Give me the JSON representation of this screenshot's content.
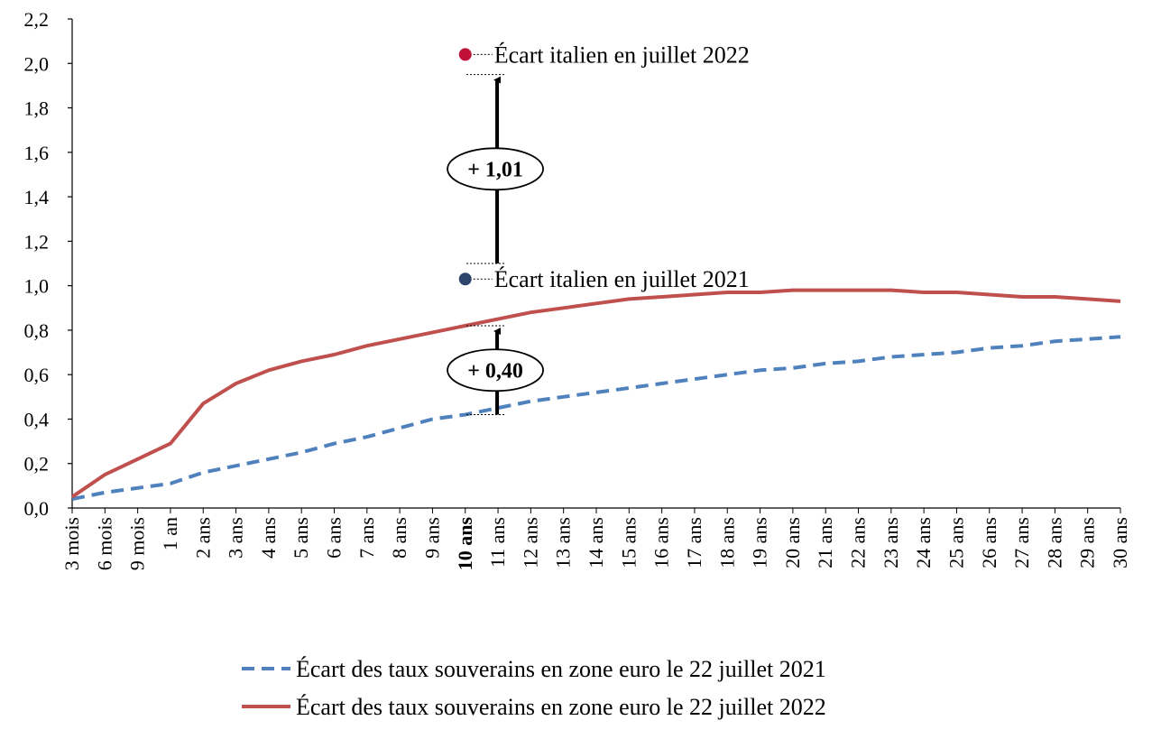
{
  "chart_data": {
    "type": "line",
    "categories": [
      "3 mois",
      "6 mois",
      "9 mois",
      "1 an",
      "2 ans",
      "3 ans",
      "4 ans",
      "5 ans",
      "6 ans",
      "7 ans",
      "8 ans",
      "9 ans",
      "10 ans",
      "11 ans",
      "12 ans",
      "13 ans",
      "14 ans",
      "15 ans",
      "16 ans",
      "17 ans",
      "18 ans",
      "19 ans",
      "20 ans",
      "21 ans",
      "22 ans",
      "23 ans",
      "24 ans",
      "25 ans",
      "26 ans",
      "27 ans",
      "28 ans",
      "29 ans",
      "30 ans"
    ],
    "highlight_category": "10 ans",
    "y_ticks": [
      "0,0",
      "0,2",
      "0,4",
      "0,6",
      "0,8",
      "1,0",
      "1,2",
      "1,4",
      "1,6",
      "1,8",
      "2,0",
      "2,2"
    ],
    "ylim": [
      0,
      2.2
    ],
    "series": [
      {
        "name": "Écart des taux souverains en zone euro le 22 juillet 2021",
        "color": "#4f81bd",
        "dash": true,
        "values": [
          0.04,
          0.07,
          0.09,
          0.11,
          0.16,
          0.19,
          0.22,
          0.25,
          0.29,
          0.32,
          0.36,
          0.4,
          0.42,
          0.45,
          0.48,
          0.5,
          0.52,
          0.54,
          0.56,
          0.58,
          0.6,
          0.62,
          0.63,
          0.65,
          0.66,
          0.68,
          0.69,
          0.7,
          0.72,
          0.73,
          0.75,
          0.76,
          0.77
        ]
      },
      {
        "name": "Écart des taux souverains en zone euro le 22 juillet 2022",
        "color": "#c0504d",
        "dash": false,
        "values": [
          0.05,
          0.15,
          0.22,
          0.29,
          0.47,
          0.56,
          0.62,
          0.66,
          0.69,
          0.73,
          0.76,
          0.79,
          0.82,
          0.85,
          0.88,
          0.9,
          0.92,
          0.94,
          0.95,
          0.96,
          0.97,
          0.97,
          0.98,
          0.98,
          0.98,
          0.98,
          0.97,
          0.97,
          0.96,
          0.95,
          0.95,
          0.94,
          0.93
        ]
      }
    ],
    "points": [
      {
        "label": "Écart italien en juillet 2022",
        "category": "10 ans",
        "value": 2.04,
        "color": "#c0103a"
      },
      {
        "label": "Écart italien en juillet 2021",
        "category": "10 ans",
        "value": 1.03,
        "color": "#2e4468"
      }
    ],
    "arrows": [
      {
        "label": "+ 1,01",
        "category": "11 ans",
        "from": 1.1,
        "to": 1.95
      },
      {
        "label": "+ 0,40",
        "category": "11 ans",
        "from": 0.42,
        "to": 0.82
      }
    ]
  }
}
